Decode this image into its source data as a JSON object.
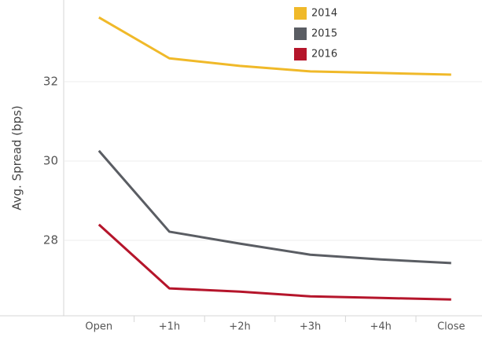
{
  "chart_data": {
    "type": "line",
    "ylabel": "Avg. Spread (bps)",
    "categories": [
      "Open",
      "+1h",
      "+2h",
      "+3h",
      "+4h",
      "Close"
    ],
    "series": [
      {
        "name": "2014",
        "color": "#f0b929",
        "values": [
          33.62,
          32.59,
          32.4,
          32.26,
          32.22,
          32.18
        ]
      },
      {
        "name": "2015",
        "color": "#5a5d63",
        "values": [
          30.26,
          28.22,
          27.92,
          27.64,
          27.52,
          27.43
        ]
      },
      {
        "name": "2016",
        "color": "#b5152b",
        "values": [
          28.4,
          26.79,
          26.71,
          26.59,
          26.55,
          26.51
        ]
      }
    ],
    "ylim": [
      26.1,
      34.06
    ],
    "yticks": [
      28,
      30,
      32
    ],
    "grid": true,
    "legend": "top"
  }
}
